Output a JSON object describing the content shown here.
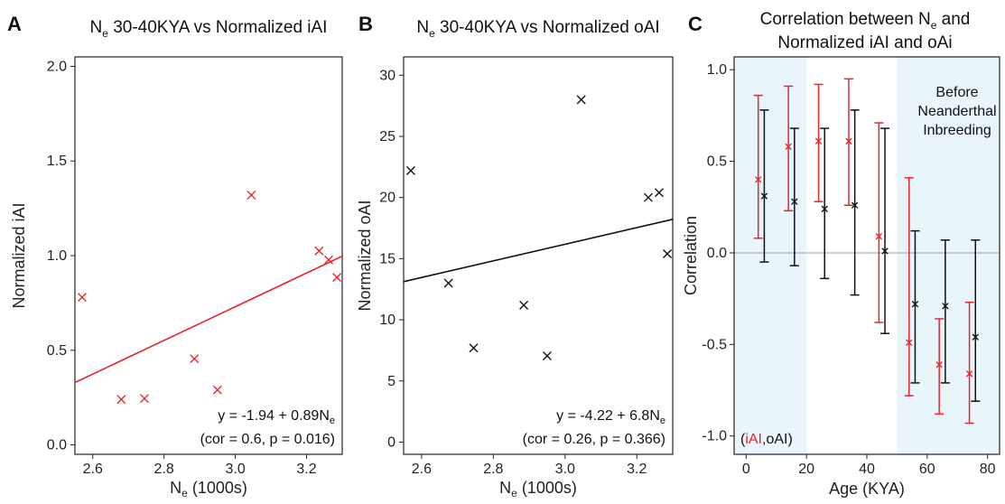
{
  "chart_data": [
    {
      "panel": "A",
      "type": "scatter",
      "title_prefix": "N",
      "title_sub": "e",
      "title_rest": " 30-40KYA vs Normalized iAI",
      "xlabel_prefix": "N",
      "xlabel_sub": "e",
      "xlabel_rest": " (1000s)",
      "ylabel": "Normalized iAI",
      "xlim": [
        2.55,
        3.3
      ],
      "ylim": [
        -0.05,
        2.05
      ],
      "xticks": [
        "2.6",
        "2.8",
        "3.0",
        "3.2"
      ],
      "yticks": [
        "0.0",
        "0.5",
        "1.0",
        "1.5",
        "2.0"
      ],
      "marker_color": "#e8262b",
      "points": [
        {
          "x": 2.57,
          "y": 0.78
        },
        {
          "x": 2.68,
          "y": 0.24
        },
        {
          "x": 2.745,
          "y": 0.245
        },
        {
          "x": 2.885,
          "y": 0.455
        },
        {
          "x": 2.95,
          "y": 0.29
        },
        {
          "x": 3.045,
          "y": 1.32
        },
        {
          "x": 3.235,
          "y": 1.025
        },
        {
          "x": 3.262,
          "y": 0.978
        },
        {
          "x": 3.285,
          "y": 0.885
        }
      ],
      "fit": {
        "intercept": -1.94,
        "slope": 0.89,
        "color": "#e8262b"
      },
      "equation_main": "y = -1.94 + 0.89N",
      "equation_sub": "e",
      "stats": "(cor = 0.6, p = 0.016)"
    },
    {
      "panel": "B",
      "type": "scatter",
      "title_prefix": "N",
      "title_sub": "e",
      "title_rest": " 30-40KYA vs Normalized oAI",
      "xlabel_prefix": "N",
      "xlabel_sub": "e",
      "xlabel_rest": " (1000s)",
      "ylabel": "Normalized oAI",
      "xlim": [
        2.55,
        3.3
      ],
      "ylim": [
        -1,
        31.5
      ],
      "xticks": [
        "2.6",
        "2.8",
        "3.0",
        "3.2"
      ],
      "yticks": [
        "0",
        "5",
        "10",
        "15",
        "20",
        "25",
        "30"
      ],
      "marker_color": "#111111",
      "points": [
        {
          "x": 2.57,
          "y": 22.2
        },
        {
          "x": 2.675,
          "y": 13.0
        },
        {
          "x": 2.745,
          "y": 7.7
        },
        {
          "x": 2.885,
          "y": 11.2
        },
        {
          "x": 2.95,
          "y": 7.05
        },
        {
          "x": 3.045,
          "y": 28.0
        },
        {
          "x": 3.232,
          "y": 20.0
        },
        {
          "x": 3.262,
          "y": 20.4
        },
        {
          "x": 3.285,
          "y": 15.4
        }
      ],
      "fit": {
        "intercept": -4.22,
        "slope": 6.8,
        "color": "#111111"
      },
      "equation_main": "y = -4.22 + 6.8N",
      "equation_sub": "e",
      "stats": "(cor = 0.26, p = 0.366)"
    },
    {
      "panel": "C",
      "type": "errorbar",
      "title_line1_prefix": "Correlation between N",
      "title_line1_sub": "e",
      "title_line1_rest": " and",
      "title_line2": "Normalized iAI and oAi",
      "xlabel": "Age (KYA)",
      "ylabel": "Correlation",
      "xlim": [
        -4,
        84
      ],
      "ylim": [
        -1.1,
        1.07
      ],
      "xticks": [
        "0",
        "20",
        "40",
        "60",
        "80"
      ],
      "yticks": [
        "1.0",
        "0.5",
        "0.0",
        "-0.5",
        "-1.0"
      ],
      "shaded_regions": [
        {
          "from": -4,
          "to": 20
        },
        {
          "from": 50,
          "to": 84
        }
      ],
      "shade_color": "#e8f5fa",
      "region_label_lines": [
        "Before",
        "Neanderthal",
        "Inbreeding"
      ],
      "legend_iai": "iAI",
      "legend_oai": "oAI",
      "series": [
        {
          "name": "iAI",
          "color": "#e8262b",
          "points": [
            {
              "x": 4,
              "y": 0.4,
              "lo": 0.08,
              "hi": 0.86
            },
            {
              "x": 14,
              "y": 0.58,
              "lo": 0.23,
              "hi": 0.91
            },
            {
              "x": 24,
              "y": 0.61,
              "lo": 0.28,
              "hi": 0.92
            },
            {
              "x": 34,
              "y": 0.61,
              "lo": 0.26,
              "hi": 0.95
            },
            {
              "x": 44,
              "y": 0.09,
              "lo": -0.38,
              "hi": 0.71
            },
            {
              "x": 54,
              "y": -0.49,
              "lo": -0.78,
              "hi": 0.41
            },
            {
              "x": 64,
              "y": -0.61,
              "lo": -0.88,
              "hi": -0.36
            },
            {
              "x": 74,
              "y": -0.66,
              "lo": -0.93,
              "hi": -0.27
            }
          ]
        },
        {
          "name": "oAI",
          "color": "#111111",
          "points": [
            {
              "x": 6,
              "y": 0.31,
              "lo": -0.05,
              "hi": 0.78
            },
            {
              "x": 16,
              "y": 0.28,
              "lo": -0.07,
              "hi": 0.68
            },
            {
              "x": 26,
              "y": 0.24,
              "lo": -0.14,
              "hi": 0.68
            },
            {
              "x": 36,
              "y": 0.26,
              "lo": -0.23,
              "hi": 0.78
            },
            {
              "x": 46,
              "y": 0.01,
              "lo": -0.44,
              "hi": 0.68
            },
            {
              "x": 56,
              "y": -0.28,
              "lo": -0.71,
              "hi": 0.12
            },
            {
              "x": 66,
              "y": -0.29,
              "lo": -0.71,
              "hi": 0.07
            },
            {
              "x": 76,
              "y": -0.46,
              "lo": -0.81,
              "hi": 0.07
            }
          ]
        }
      ]
    }
  ]
}
